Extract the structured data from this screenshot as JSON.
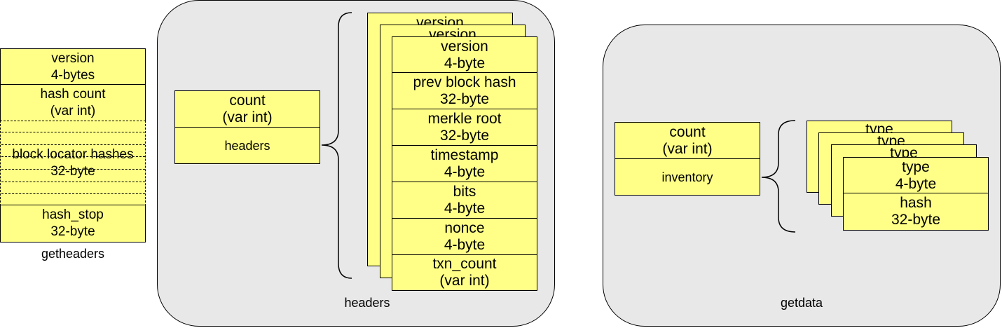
{
  "getheaders": {
    "caption": "getheaders",
    "version": [
      "version",
      "4-bytes"
    ],
    "hash_count": [
      "hash count",
      "(var int)"
    ],
    "block_locator": [
      "block locator hashes",
      "32-byte"
    ],
    "hash_stop": [
      "hash_stop",
      "32-byte"
    ]
  },
  "headers_panel": {
    "caption": "headers",
    "count": [
      "count",
      "(var int)"
    ],
    "headers_field": "headers",
    "stack_partial_label": "version",
    "fields": [
      [
        "version",
        "4-byte"
      ],
      [
        "prev block hash",
        "32-byte"
      ],
      [
        "merkle root",
        "32-byte"
      ],
      [
        "timestamp",
        "4-byte"
      ],
      [
        "bits",
        "4-byte"
      ],
      [
        "nonce",
        "4-byte"
      ],
      [
        "txn_count",
        "(var int)"
      ]
    ]
  },
  "getdata_panel": {
    "caption": "getdata",
    "count": [
      "count",
      "(var int)"
    ],
    "inventory_field": "inventory",
    "stack_partial_label": "type",
    "fields": [
      [
        "type",
        "4-byte"
      ],
      [
        "hash",
        "32-byte"
      ]
    ]
  },
  "colors": {
    "field_fill": "#ffff88",
    "panel_fill": "#e8e8e8",
    "stroke": "#000000"
  }
}
